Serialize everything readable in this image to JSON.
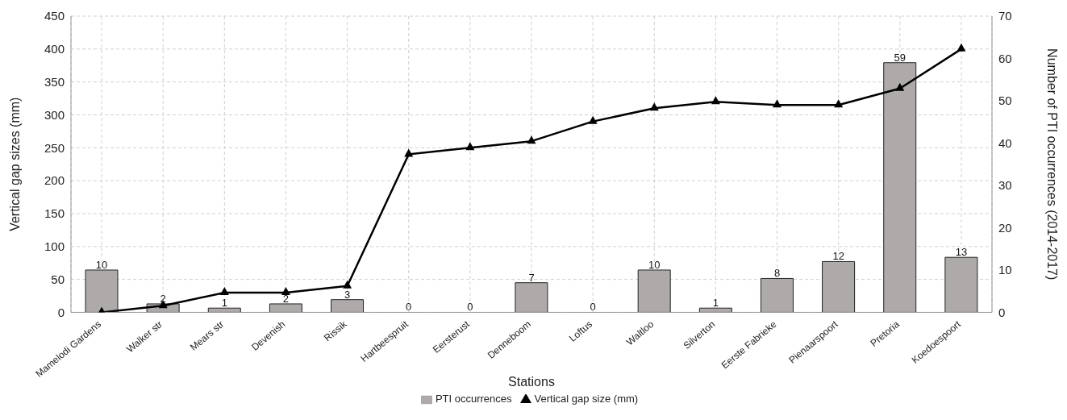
{
  "chart_data": {
    "type": "bar",
    "xlabel": "Stations",
    "ylabel": "Vertical gap sizes (mm)",
    "y2label": "Number of PTI occurrences (2014-2017)",
    "categories": [
      "Mamelodi Gardens",
      "Walker str",
      "Mears str",
      "Devenish",
      "Rissik",
      "Hartbeespruit",
      "Eersterust",
      "Denneboom",
      "Loftus",
      "Waltloo",
      "Silverton",
      "Eerste Fabrieke",
      "Pienaarspoort",
      "Pretoria",
      "Koedoespoort"
    ],
    "series": [
      {
        "name": "PTI occurrences",
        "axis": "y2",
        "color": "#aeaaaa",
        "data_labels": true,
        "values": [
          10,
          2,
          1,
          2,
          3,
          0,
          0,
          7,
          0,
          10,
          1,
          8,
          12,
          59,
          13
        ]
      },
      {
        "name": "Vertical gap size (mm)",
        "type": "line",
        "color": "#000000",
        "marker": "triangle",
        "line_style": "solid",
        "values": [
          0,
          10,
          30,
          30,
          40,
          240,
          250,
          260,
          290,
          310,
          320,
          315,
          315,
          340,
          400
        ]
      }
    ],
    "ylim": [
      0,
      450
    ],
    "yticks": [
      0,
      50,
      100,
      150,
      200,
      250,
      300,
      350,
      400,
      450
    ],
    "y2lim": [
      0,
      70
    ],
    "y2ticks": [
      0,
      10,
      20,
      30,
      40,
      50,
      60,
      70
    ],
    "grid": true,
    "legend": "bottom"
  }
}
